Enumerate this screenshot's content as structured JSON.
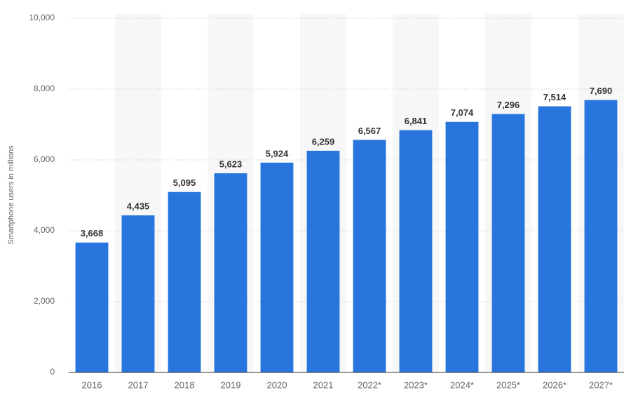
{
  "chart_data": {
    "type": "bar",
    "y_label": "Smartphone users in millions",
    "categories": [
      "2016",
      "2017",
      "2018",
      "2019",
      "2020",
      "2021",
      "2022*",
      "2023*",
      "2024*",
      "2025*",
      "2026*",
      "2027*"
    ],
    "values": [
      3668,
      4435,
      5095,
      5623,
      5924,
      6259,
      6567,
      6841,
      7074,
      7296,
      7514,
      7690
    ],
    "value_labels": [
      "3,668",
      "4,435",
      "5,095",
      "5,623",
      "5,924",
      "6,259",
      "6,567",
      "6,841",
      "7,074",
      "7,296",
      "7,514",
      "7,690"
    ],
    "color": "#2876dd",
    "ylim": [
      0,
      10000
    ],
    "yticks": [
      0,
      {
        "value": 2000,
        "label": "2,000"
      },
      {
        "value": 4000,
        "label": "4,000"
      },
      {
        "value": 6000,
        "label": "6,000"
      },
      {
        "value": 8000,
        "label": "8,000"
      },
      {
        "value": 10000,
        "label": "10,000"
      }
    ],
    "grid": true
  }
}
